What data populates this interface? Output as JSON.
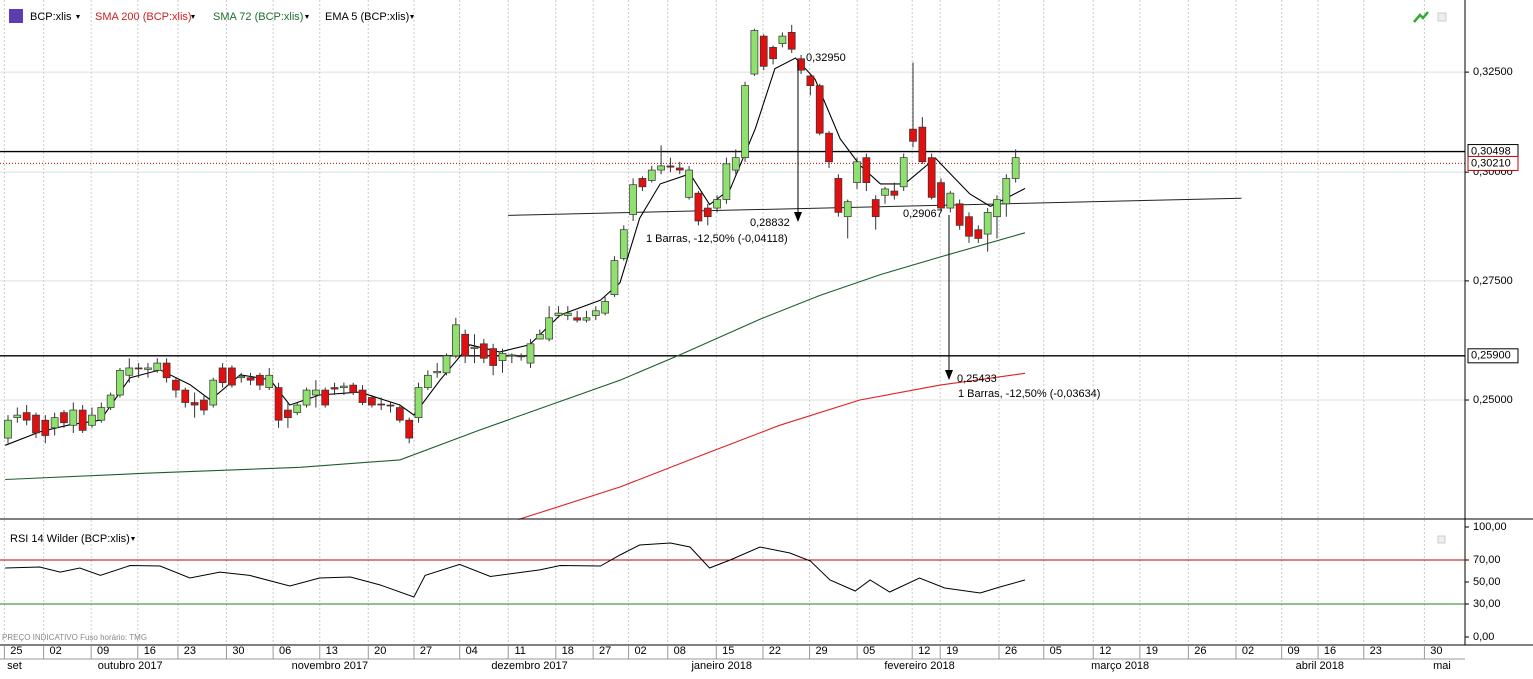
{
  "chart_data": {
    "type": "candlestick",
    "legend": [
      "BCP:xlis",
      "SMA 200 (BCP:xlis)",
      "SMA 72 (BCP:xlis)",
      "EMA 5 (BCP:xlis)"
    ],
    "footer": "PREÇO INDICATIVO   Fuso horário: TMG",
    "log_scale": true,
    "ylim": [
      0.2273,
      0.3443
    ],
    "yticks": [
      {
        "value": 0.25,
        "label": "0,25000"
      },
      {
        "value": 0.275,
        "label": "0,27500"
      },
      {
        "value": 0.3,
        "label": "0,30000"
      },
      {
        "value": 0.325,
        "label": "0,32500"
      }
    ],
    "up_color": "#90e070",
    "down_color": "#e01010",
    "candles": [
      [
        0.2425,
        0.247,
        0.2415,
        0.246
      ],
      [
        0.2465,
        0.2485,
        0.2455,
        0.247
      ],
      [
        0.2475,
        0.249,
        0.245,
        0.246
      ],
      [
        0.247,
        0.2475,
        0.2425,
        0.2435
      ],
      [
        0.246,
        0.247,
        0.2415,
        0.243
      ],
      [
        0.2445,
        0.2475,
        0.243,
        0.2465
      ],
      [
        0.2475,
        0.248,
        0.2445,
        0.2455
      ],
      [
        0.245,
        0.2495,
        0.2435,
        0.248
      ],
      [
        0.248,
        0.249,
        0.2435,
        0.244
      ],
      [
        0.245,
        0.2485,
        0.2445,
        0.247
      ],
      [
        0.246,
        0.2495,
        0.2455,
        0.2485
      ],
      [
        0.2485,
        0.2515,
        0.248,
        0.251
      ],
      [
        0.251,
        0.2565,
        0.2505,
        0.256
      ],
      [
        0.255,
        0.2585,
        0.2535,
        0.2565
      ],
      [
        0.2565,
        0.2575,
        0.2545,
        0.2563
      ],
      [
        0.2562,
        0.2575,
        0.2545,
        0.2565
      ],
      [
        0.256,
        0.2585,
        0.2555,
        0.2575
      ],
      [
        0.2575,
        0.2585,
        0.2535,
        0.2545
      ],
      [
        0.254,
        0.2545,
        0.2505,
        0.252
      ],
      [
        0.252,
        0.2525,
        0.2485,
        0.2495
      ],
      [
        0.2495,
        0.2515,
        0.2465,
        0.249
      ],
      [
        0.25,
        0.251,
        0.247,
        0.248
      ],
      [
        0.249,
        0.2545,
        0.2485,
        0.254
      ],
      [
        0.2565,
        0.2575,
        0.2525,
        0.2535
      ],
      [
        0.2565,
        0.257,
        0.2525,
        0.253
      ],
      [
        0.2545,
        0.2555,
        0.2535,
        0.2548
      ],
      [
        0.2545,
        0.2555,
        0.253,
        0.254
      ],
      [
        0.255,
        0.2555,
        0.252,
        0.253
      ],
      [
        0.2525,
        0.2565,
        0.252,
        0.255
      ],
      [
        0.2525,
        0.2535,
        0.2445,
        0.246
      ],
      [
        0.248,
        0.2495,
        0.2445,
        0.2465
      ],
      [
        0.2475,
        0.2495,
        0.247,
        0.249
      ],
      [
        0.249,
        0.2525,
        0.2485,
        0.252
      ],
      [
        0.251,
        0.254,
        0.2485,
        0.252
      ],
      [
        0.252,
        0.2525,
        0.2485,
        0.249
      ],
      [
        0.2525,
        0.2535,
        0.251,
        0.2522
      ],
      [
        0.2525,
        0.2535,
        0.251,
        0.2528
      ],
      [
        0.253,
        0.2535,
        0.251,
        0.2515
      ],
      [
        0.252,
        0.253,
        0.249,
        0.2495
      ],
      [
        0.2505,
        0.251,
        0.2485,
        0.249
      ],
      [
        0.2492,
        0.2505,
        0.248,
        0.249
      ],
      [
        0.249,
        0.2495,
        0.2475,
        0.2488
      ],
      [
        0.2485,
        0.249,
        0.2455,
        0.246
      ],
      [
        0.246,
        0.2465,
        0.2415,
        0.2425
      ],
      [
        0.2465,
        0.2535,
        0.2455,
        0.2525
      ],
      [
        0.2525,
        0.256,
        0.252,
        0.255
      ],
      [
        0.2555,
        0.2575,
        0.2545,
        0.2558
      ],
      [
        0.2555,
        0.2595,
        0.255,
        0.259
      ],
      [
        0.259,
        0.267,
        0.2585,
        0.2655
      ],
      [
        0.2635,
        0.2645,
        0.2575,
        0.259
      ],
      [
        0.2605,
        0.2635,
        0.2575,
        0.2608
      ],
      [
        0.2615,
        0.2625,
        0.2575,
        0.2585
      ],
      [
        0.2605,
        0.2615,
        0.255,
        0.257
      ],
      [
        0.258,
        0.2605,
        0.2555,
        0.2595
      ],
      [
        0.259,
        0.2595,
        0.2575,
        0.2592
      ],
      [
        0.259,
        0.2595,
        0.258,
        0.2588
      ],
      [
        0.2575,
        0.2625,
        0.2565,
        0.2615
      ],
      [
        0.2625,
        0.2645,
        0.2625,
        0.2635
      ],
      [
        0.2625,
        0.2695,
        0.262,
        0.267
      ],
      [
        0.2675,
        0.2695,
        0.267,
        0.268
      ],
      [
        0.2675,
        0.2695,
        0.2665,
        0.268
      ],
      [
        0.267,
        0.2685,
        0.266,
        0.2665
      ],
      [
        0.2665,
        0.2685,
        0.266,
        0.267
      ],
      [
        0.2675,
        0.2695,
        0.2665,
        0.2685
      ],
      [
        0.268,
        0.2715,
        0.2675,
        0.2705
      ],
      [
        0.272,
        0.2805,
        0.2715,
        0.2795
      ],
      [
        0.28,
        0.2875,
        0.2795,
        0.2865
      ],
      [
        0.29,
        0.2985,
        0.2885,
        0.297
      ],
      [
        0.2985,
        0.299,
        0.2955,
        0.2965
      ],
      [
        0.298,
        0.3015,
        0.2975,
        0.3005
      ],
      [
        0.3005,
        0.3065,
        0.2995,
        0.3015
      ],
      [
        0.3015,
        0.3035,
        0.3,
        0.3012
      ],
      [
        0.301,
        0.3025,
        0.2995,
        0.3005
      ],
      [
        0.294,
        0.3015,
        0.2935,
        0.3005
      ],
      [
        0.295,
        0.2955,
        0.2875,
        0.2885
      ],
      [
        0.2915,
        0.2925,
        0.2875,
        0.2895
      ],
      [
        0.2915,
        0.2945,
        0.2905,
        0.2935
      ],
      [
        0.2935,
        0.3035,
        0.2925,
        0.302
      ],
      [
        0.3005,
        0.3055,
        0.2995,
        0.3035
      ],
      [
        0.3035,
        0.3225,
        0.3025,
        0.3215
      ],
      [
        0.3245,
        0.3365,
        0.324,
        0.336
      ],
      [
        0.3345,
        0.335,
        0.3255,
        0.3265
      ],
      [
        0.3315,
        0.332,
        0.327,
        0.3285
      ],
      [
        0.3325,
        0.3355,
        0.3315,
        0.3345
      ],
      [
        0.3355,
        0.3375,
        0.33,
        0.331
      ],
      [
        0.3285,
        0.3295,
        0.3245,
        0.3255
      ],
      [
        0.324,
        0.3245,
        0.319,
        0.3215
      ],
      [
        0.3215,
        0.322,
        0.309,
        0.3095
      ],
      [
        0.3095,
        0.31,
        0.301,
        0.3025
      ],
      [
        0.2985,
        0.2995,
        0.2895,
        0.2905
      ],
      [
        0.2895,
        0.2935,
        0.2845,
        0.293
      ],
      [
        0.2975,
        0.3035,
        0.296,
        0.3025
      ],
      [
        0.3035,
        0.3045,
        0.2955,
        0.2975
      ],
      [
        0.2935,
        0.2945,
        0.2865,
        0.2895
      ],
      [
        0.2945,
        0.2965,
        0.2925,
        0.296
      ],
      [
        0.2955,
        0.2975,
        0.2935,
        0.2945
      ],
      [
        0.2965,
        0.3045,
        0.2955,
        0.3035
      ],
      [
        0.3105,
        0.3275,
        0.306,
        0.3075
      ],
      [
        0.311,
        0.3135,
        0.302,
        0.3025
      ],
      [
        0.3035,
        0.3045,
        0.2935,
        0.294
      ],
      [
        0.2975,
        0.2985,
        0.2905,
        0.2915
      ],
      [
        0.2915,
        0.2955,
        0.2905,
        0.295
      ],
      [
        0.2925,
        0.2935,
        0.2865,
        0.2875
      ],
      [
        0.2895,
        0.2905,
        0.2835,
        0.285
      ],
      [
        0.2865,
        0.2875,
        0.2835,
        0.2845
      ],
      [
        0.2855,
        0.2915,
        0.2815,
        0.2905
      ],
      [
        0.2895,
        0.2945,
        0.2845,
        0.2935
      ],
      [
        0.2925,
        0.2995,
        0.2895,
        0.2985
      ],
      [
        0.2985,
        0.3055,
        0.2975,
        0.3035
      ]
    ],
    "series": [
      {
        "name": "SMA 200 (BCP:xlis)",
        "color": "#e02020",
        "x": [
          54.7,
          65.6,
          74.2,
          82.7,
          91.3,
          99.9,
          109.0
        ],
        "values": [
          0.2272,
          0.2332,
          0.2391,
          0.245,
          0.25,
          0.253,
          0.2554
        ]
      },
      {
        "name": "SMA 72 (BCP:xlis)",
        "color": "#1e5e2e",
        "x": [
          -0.3,
          15.2,
          31.3,
          42.0,
          50.6,
          58.1,
          65.6,
          72.0,
          80.6,
          87.0,
          93.5,
          99.9,
          109.0
        ],
        "values": [
          0.2346,
          0.2358,
          0.2369,
          0.2383,
          0.2441,
          0.249,
          0.254,
          0.2592,
          0.2667,
          0.2718,
          0.2764,
          0.2803,
          0.2858
        ]
      },
      {
        "name": "EMA 5 (BCP:xlis)",
        "color": "#000000",
        "x": [
          -0.3,
          3.4,
          6.6,
          9.9,
          13.1,
          16.3,
          19.5,
          21.7,
          24.9,
          28.1,
          30.2,
          33.4,
          37.7,
          42.0,
          43.5,
          46.3,
          49.5,
          52.7,
          55.9,
          59.2,
          63.5,
          65.6,
          67.7,
          69.9,
          73.1,
          75.2,
          77.4,
          80.1,
          82.2,
          84.4,
          86.5,
          89.2,
          91.3,
          93.5,
          96.1,
          99.4,
          101.0,
          103.1,
          105.3,
          109.0
        ],
        "values": [
          0.2411,
          0.2437,
          0.2451,
          0.246,
          0.2545,
          0.2561,
          0.2531,
          0.25,
          0.2551,
          0.2541,
          0.249,
          0.251,
          0.2516,
          0.249,
          0.247,
          0.254,
          0.2613,
          0.2598,
          0.2613,
          0.2676,
          0.2708,
          0.2746,
          0.2891,
          0.2972,
          0.2996,
          0.2923,
          0.2959,
          0.3106,
          0.3259,
          0.3287,
          0.3232,
          0.3081,
          0.3017,
          0.2972,
          0.2972,
          0.3034,
          0.2996,
          0.2948,
          0.2919,
          0.2961
        ]
      }
    ],
    "hlines": [
      {
        "value": 0.30498,
        "label": "0,30498",
        "color": "#000000"
      },
      {
        "value": 0.3021,
        "label": "0,30210",
        "color": "#c00000",
        "dotted": true
      },
      {
        "value": 0.259,
        "label": "0,25900",
        "color": "#000000"
      }
    ],
    "trendline": {
      "x": [
        53.6,
        132.2
      ],
      "values": [
        0.2898,
        0.2938
      ]
    },
    "annotations": [
      "0,32950",
      "0,28832",
      "1 Barras, -12,50% (-0,04118)",
      "0,29067",
      "0,25433",
      "1 Barras, -12,50% (-0,03634)"
    ],
    "xticks": [
      {
        "value": 0.9,
        "label": "25"
      },
      {
        "value": 5.1,
        "label": "02"
      },
      {
        "value": 10.2,
        "label": "09"
      },
      {
        "value": 15.2,
        "label": "16"
      },
      {
        "value": 19.5,
        "label": "23"
      },
      {
        "value": 24.7,
        "label": "30"
      },
      {
        "value": 29.7,
        "label": "06"
      },
      {
        "value": 34.7,
        "label": "13"
      },
      {
        "value": 39.9,
        "label": "20"
      },
      {
        "value": 44.8,
        "label": "27"
      },
      {
        "value": 49.7,
        "label": "04"
      },
      {
        "value": 54.9,
        "label": "11"
      },
      {
        "value": 60.0,
        "label": "18"
      },
      {
        "value": 64.0,
        "label": "27"
      },
      {
        "value": 67.8,
        "label": "02"
      },
      {
        "value": 72.0,
        "label": "08"
      },
      {
        "value": 77.2,
        "label": "15"
      },
      {
        "value": 82.2,
        "label": "22"
      },
      {
        "value": 87.2,
        "label": "29"
      },
      {
        "value": 92.3,
        "label": "05"
      },
      {
        "value": 98.2,
        "label": "12"
      },
      {
        "value": 101.2,
        "label": "19"
      },
      {
        "value": 107.5,
        "label": "26"
      },
      {
        "value": 112.3,
        "label": "05"
      },
      {
        "value": 117.6,
        "label": "12"
      },
      {
        "value": 122.6,
        "label": "19"
      },
      {
        "value": 127.8,
        "label": "26"
      },
      {
        "value": 132.9,
        "label": "02"
      },
      {
        "value": 137.8,
        "label": "09"
      },
      {
        "value": 141.7,
        "label": "16"
      },
      {
        "value": 146.6,
        "label": "23"
      },
      {
        "value": 153.1,
        "label": "30"
      }
    ],
    "month_labels": [
      {
        "value": 0.7,
        "label": "set"
      },
      {
        "value": 13.1,
        "label": "outubro 2017"
      },
      {
        "value": 34.5,
        "label": "novembro 2017"
      },
      {
        "value": 55.9,
        "label": "dezembro 2017"
      },
      {
        "value": 76.5,
        "label": "janeiro 2018"
      },
      {
        "value": 97.7,
        "label": "fevereiro 2018"
      },
      {
        "value": 119.2,
        "label": "março 2018"
      },
      {
        "value": 140.6,
        "label": "abril 2018"
      },
      {
        "value": 153.7,
        "label": "mai"
      }
    ],
    "rsi": {
      "name": "RSI 14 Wilder (BCP:xlis)",
      "color": "#000000",
      "ylim": [
        0,
        100
      ],
      "yticks": [
        {
          "value": 0,
          "label": "0,00"
        },
        {
          "value": 30,
          "label": "30,00"
        },
        {
          "value": 50,
          "label": "50,00"
        },
        {
          "value": 70,
          "label": "70,00"
        },
        {
          "value": 100,
          "label": "100,00"
        }
      ],
      "upper": 70,
      "lower": 30,
      "upper_color": "#c00000",
      "lower_color": "#208020",
      "x": [
        -0.3,
        3.4,
        5.6,
        7.7,
        9.9,
        13.1,
        16.3,
        19.5,
        22.7,
        25.9,
        30.2,
        33.4,
        36.7,
        39.9,
        43.5,
        44.7,
        48.4,
        51.7,
        57.0,
        59.2,
        63.5,
        65.6,
        67.7,
        71.0,
        73.1,
        75.2,
        77.4,
        80.6,
        83.8,
        86.0,
        88.1,
        90.8,
        92.4,
        94.5,
        97.7,
        100.4,
        104.2,
        106.3,
        109.0
      ],
      "values": [
        62.7,
        63.6,
        59,
        62.7,
        56,
        65,
        64.5,
        53.6,
        59,
        56,
        46.4,
        53.6,
        54.5,
        47.3,
        36.4,
        56,
        66,
        55,
        61,
        65,
        64.5,
        74.5,
        83.6,
        85.5,
        81.8,
        62.7,
        70,
        81.8,
        76.4,
        69.1,
        51.8,
        41.8,
        51.8,
        40.9,
        53.6,
        44.5,
        40,
        45.5,
        51.8
      ]
    }
  }
}
